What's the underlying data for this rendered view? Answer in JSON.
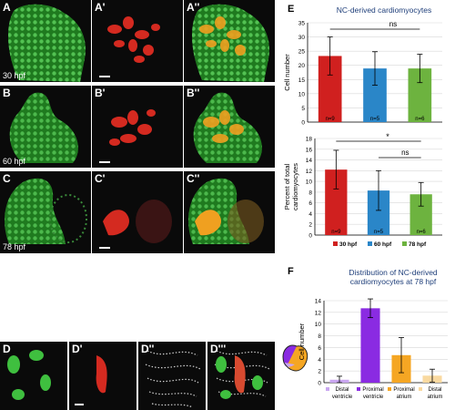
{
  "panels": {
    "rowA": {
      "labels": [
        "A",
        "A'",
        "A''"
      ],
      "time": "30 hpf"
    },
    "rowB": {
      "labels": [
        "B",
        "B'",
        "B''"
      ],
      "time": "60 hpf"
    },
    "rowC": {
      "labels": [
        "C",
        "C'",
        "C''"
      ],
      "time": "78 hpf"
    },
    "rowD": {
      "labels": [
        "D",
        "D'",
        "D''",
        "D'''"
      ]
    }
  },
  "colors": {
    "red": "#d0201f",
    "blue": "#2a86c8",
    "green": "#6db33f",
    "purple": "#8a2be2",
    "orange": "#f5a623"
  },
  "chart_data": [
    {
      "id": "E-top",
      "panel_label": "E",
      "type": "bar",
      "title": "NC-derived cardiomyocytes",
      "ylabel": "Cell number",
      "categories": [
        "30 hpf",
        "60 hpf",
        "78 hpf"
      ],
      "values": [
        23.3,
        18.9,
        18.9
      ],
      "errors": [
        6.7,
        5.9,
        5.0
      ],
      "n_labels": [
        "n=9",
        "n=5",
        "n=6"
      ],
      "ylim": [
        0,
        35
      ],
      "yticks": [
        0,
        5,
        10,
        15,
        20,
        25,
        30,
        35
      ],
      "significance": "ns",
      "colors": [
        "#d0201f",
        "#2a86c8",
        "#6db33f"
      ],
      "grid": true
    },
    {
      "id": "E-bottom",
      "type": "bar",
      "ylabel": "Percent of total cardiomyocytes",
      "categories": [
        "30 hpf",
        "60 hpf",
        "78 hpf"
      ],
      "values": [
        12.2,
        8.3,
        7.6
      ],
      "errors": [
        3.6,
        3.7,
        2.2
      ],
      "n_labels": [
        "n=9",
        "n=5",
        "n=6"
      ],
      "ylim": [
        0,
        18
      ],
      "yticks": [
        0,
        2,
        4,
        6,
        8,
        10,
        12,
        14,
        16,
        18
      ],
      "significance": [
        "*",
        "ns"
      ],
      "legend": [
        "30 hpf",
        "60 hpf",
        "78 hpf"
      ],
      "colors": [
        "#d0201f",
        "#2a86c8",
        "#6db33f"
      ],
      "grid": true
    },
    {
      "id": "F",
      "panel_label": "F",
      "type": "bar",
      "title": "Distribution of NC-derived cardiomyocytes at 78 hpf",
      "ylabel": "Cell number",
      "categories": [
        "Distal ventricle",
        "Proximal ventricle",
        "Proximal atrium",
        "Distal atrium"
      ],
      "values": [
        0.5,
        12.7,
        4.7,
        1.2
      ],
      "errors": [
        0.6,
        1.6,
        3.0,
        1.1
      ],
      "ylim": [
        0,
        14
      ],
      "yticks": [
        0,
        2,
        4,
        6,
        8,
        10,
        12,
        14
      ],
      "colors": [
        "#c9a6f0",
        "#8a2be2",
        "#f5a623",
        "#f9d9a0"
      ],
      "grid": true
    }
  ]
}
